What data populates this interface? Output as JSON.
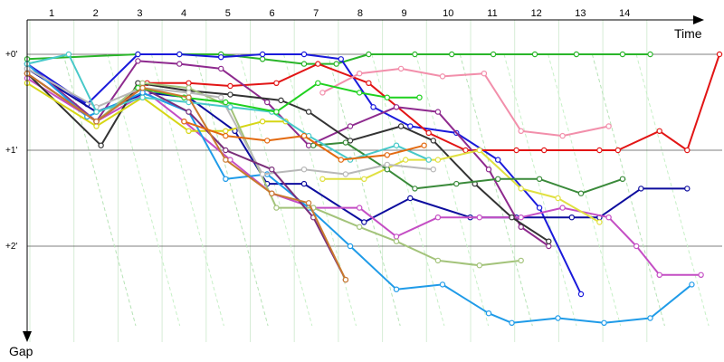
{
  "chart_data": {
    "type": "line",
    "xlabel": "Time",
    "ylabel": "Gap",
    "x_ticks": [
      "1",
      "2",
      "3",
      "4",
      "5",
      "6",
      "7",
      "8",
      "9",
      "10",
      "11",
      "12",
      "13",
      "14"
    ],
    "y_ticks": [
      "+0'",
      "+1'",
      "+2'"
    ],
    "xlim": [
      0,
      15
    ],
    "ylim": [
      0,
      3.2
    ],
    "grid": true,
    "legend": "none",
    "series": [
      {
        "color": "#2ab52a",
        "points": [
          [
            0,
            0.05
          ],
          [
            2.4,
            0.0
          ],
          [
            3.3,
            0.0
          ],
          [
            4.2,
            0.0
          ],
          [
            5.1,
            0.05
          ],
          [
            6,
            0.1
          ],
          [
            6.7,
            0.1
          ],
          [
            7.4,
            0.0
          ],
          [
            8.4,
            0.0
          ],
          [
            9.2,
            0.0
          ],
          [
            10.1,
            0.0
          ],
          [
            11,
            0.0
          ],
          [
            11.9,
            0.0
          ],
          [
            12.9,
            0.0
          ],
          [
            13.5,
            0.0
          ]
        ]
      },
      {
        "color": "#1a1adb",
        "points": [
          [
            0,
            0.1
          ],
          [
            1.3,
            0.52
          ],
          [
            2.4,
            0.0
          ],
          [
            3.3,
            0.0
          ],
          [
            4.2,
            0.03
          ],
          [
            5.1,
            0.0
          ],
          [
            6,
            0.0
          ],
          [
            6.8,
            0.05
          ],
          [
            7.5,
            0.55
          ],
          [
            8.3,
            0.75
          ],
          [
            9.3,
            0.82
          ],
          [
            10.2,
            1.1
          ],
          [
            11.1,
            1.6
          ],
          [
            12,
            2.5
          ]
        ]
      },
      {
        "color": "#e21515",
        "points": [
          [
            0,
            0.2
          ],
          [
            1.5,
            0.7
          ],
          [
            2.6,
            0.3
          ],
          [
            3.5,
            0.3
          ],
          [
            4.4,
            0.33
          ],
          [
            5.4,
            0.3
          ],
          [
            6.3,
            0.1
          ],
          [
            7.4,
            0.3
          ],
          [
            8.7,
            0.82
          ],
          [
            9.5,
            1.0
          ],
          [
            10.6,
            1.0
          ],
          [
            11.2,
            1.0
          ],
          [
            12.4,
            1.0
          ],
          [
            12.8,
            1.0
          ],
          [
            13.7,
            0.8
          ],
          [
            14.3,
            1.0
          ],
          [
            15,
            0.0
          ]
        ]
      },
      {
        "color": "#0d0d9e",
        "points": [
          [
            0,
            0.15
          ],
          [
            1.5,
            0.6
          ],
          [
            2.6,
            0.4
          ],
          [
            3.5,
            0.45
          ],
          [
            4.5,
            0.8
          ],
          [
            5.2,
            1.35
          ],
          [
            6,
            1.35
          ],
          [
            7.3,
            1.75
          ],
          [
            8.3,
            1.5
          ],
          [
            9.6,
            1.7
          ],
          [
            10.6,
            1.7
          ],
          [
            11.8,
            1.7
          ],
          [
            12.4,
            1.7
          ],
          [
            13.3,
            1.4
          ],
          [
            14.3,
            1.4
          ]
        ]
      },
      {
        "color": "#8e2a8e",
        "points": [
          [
            0,
            0.1
          ],
          [
            1.5,
            0.7
          ],
          [
            2.4,
            0.07
          ],
          [
            3.3,
            0.1
          ],
          [
            4.2,
            0.15
          ],
          [
            5.2,
            0.5
          ],
          [
            6.1,
            0.95
          ],
          [
            7,
            0.75
          ],
          [
            8,
            0.55
          ],
          [
            8.9,
            0.6
          ],
          [
            10,
            1.2
          ],
          [
            10.7,
            1.8
          ],
          [
            11.3,
            2.0
          ]
        ]
      },
      {
        "color": "#c44ec4",
        "points": [
          [
            0,
            0.25
          ],
          [
            1.5,
            0.7
          ],
          [
            2.6,
            0.4
          ],
          [
            3.4,
            0.7
          ],
          [
            4.4,
            1.1
          ],
          [
            5.3,
            1.45
          ],
          [
            6.2,
            1.6
          ],
          [
            7.2,
            1.6
          ],
          [
            8,
            1.9
          ],
          [
            8.9,
            1.7
          ],
          [
            9.8,
            1.7
          ],
          [
            10.7,
            1.7
          ],
          [
            11.6,
            1.6
          ],
          [
            12.6,
            1.7
          ],
          [
            13.2,
            2.0
          ],
          [
            13.7,
            2.3
          ],
          [
            14.6,
            2.3
          ]
        ]
      },
      {
        "color": "#333333",
        "points": [
          [
            0,
            0.2
          ],
          [
            1.6,
            0.95
          ],
          [
            2.4,
            0.3
          ],
          [
            3.5,
            0.38
          ],
          [
            4.4,
            0.42
          ],
          [
            5.5,
            0.48
          ],
          [
            6.1,
            0.6
          ],
          [
            7,
            0.9
          ],
          [
            8.1,
            0.75
          ],
          [
            8.8,
            0.9
          ],
          [
            9.7,
            1.35
          ],
          [
            10.5,
            1.7
          ],
          [
            11.3,
            1.95
          ]
        ]
      },
      {
        "color": "#d6d615",
        "points": [
          [
            0,
            0.3
          ],
          [
            1.5,
            0.75
          ],
          [
            2.5,
            0.45
          ],
          [
            3.5,
            0.8
          ],
          [
            4.3,
            0.8
          ],
          [
            5.1,
            0.7
          ],
          [
            5.6,
            0.7
          ]
        ]
      },
      {
        "color": "#e0e040",
        "points": [
          [
            6.4,
            1.3
          ],
          [
            7.3,
            1.3
          ],
          [
            8.2,
            1.1
          ],
          [
            8.9,
            1.1
          ],
          [
            9.8,
            1.0
          ],
          [
            10.7,
            1.4
          ],
          [
            11.5,
            1.5
          ],
          [
            12.4,
            1.75
          ]
        ]
      },
      {
        "color": "#f28fab",
        "points": [
          [
            6.4,
            0.4
          ],
          [
            7.2,
            0.2
          ],
          [
            8.1,
            0.15
          ],
          [
            9,
            0.23
          ],
          [
            9.9,
            0.2
          ],
          [
            10.7,
            0.8
          ],
          [
            11.6,
            0.85
          ],
          [
            12.6,
            0.75
          ]
        ]
      },
      {
        "color": "#1f9be8",
        "points": [
          [
            0,
            0.1
          ],
          [
            1.3,
            0.65
          ],
          [
            2.5,
            0.4
          ],
          [
            3.5,
            0.6
          ],
          [
            4.3,
            1.3
          ],
          [
            5.2,
            1.25
          ],
          [
            6.1,
            1.6
          ],
          [
            7,
            2.0
          ],
          [
            8,
            2.45
          ],
          [
            9,
            2.4
          ],
          [
            10,
            2.7
          ],
          [
            10.5,
            2.8
          ],
          [
            11.5,
            2.75
          ],
          [
            12.5,
            2.8
          ],
          [
            13.5,
            2.75
          ],
          [
            14.4,
            2.4
          ]
        ]
      },
      {
        "color": "#3a8a3a",
        "points": [
          [
            6.2,
            0.95
          ],
          [
            6.9,
            0.92
          ],
          [
            7.8,
            1.2
          ],
          [
            8.4,
            1.4
          ],
          [
            9.3,
            1.35
          ],
          [
            10.2,
            1.3
          ],
          [
            11.1,
            1.3
          ],
          [
            12,
            1.45
          ],
          [
            12.9,
            1.3
          ]
        ]
      },
      {
        "color": "#a3c37a",
        "points": [
          [
            0,
            0.2
          ],
          [
            1.5,
            0.7
          ],
          [
            2.5,
            0.3
          ],
          [
            3.5,
            0.35
          ],
          [
            4.4,
            0.55
          ],
          [
            5.4,
            1.6
          ],
          [
            6.2,
            1.6
          ],
          [
            7.2,
            1.8
          ],
          [
            8,
            1.95
          ],
          [
            8.9,
            2.15
          ],
          [
            9.8,
            2.2
          ],
          [
            10.7,
            2.15
          ]
        ]
      },
      {
        "color": "#b8b8b8",
        "points": [
          [
            0,
            0.15
          ],
          [
            1.5,
            0.55
          ],
          [
            2.5,
            0.35
          ],
          [
            3.5,
            0.4
          ],
          [
            4.2,
            0.45
          ],
          [
            5.1,
            1.25
          ],
          [
            6,
            1.2
          ],
          [
            6.9,
            1.25
          ],
          [
            7.8,
            1.15
          ],
          [
            8.8,
            1.2
          ]
        ]
      },
      {
        "color": "#47c9c9",
        "points": [
          [
            0,
            0.1
          ],
          [
            0.9,
            0.0
          ],
          [
            1.5,
            0.6
          ],
          [
            2.5,
            0.45
          ],
          [
            3.5,
            0.5
          ],
          [
            4.4,
            0.55
          ],
          [
            5.3,
            0.6
          ],
          [
            6.1,
            0.85
          ],
          [
            7,
            1.1
          ],
          [
            8,
            0.95
          ],
          [
            8.7,
            1.1
          ]
        ]
      },
      {
        "color": "#7a2e7a",
        "points": [
          [
            0,
            0.2
          ],
          [
            1.5,
            0.7
          ],
          [
            2.5,
            0.35
          ],
          [
            3.5,
            0.6
          ],
          [
            4.3,
            1.0
          ],
          [
            5.3,
            1.2
          ],
          [
            6.2,
            1.7
          ],
          [
            6.9,
            2.35
          ]
        ]
      },
      {
        "color": "#1fd11f",
        "points": [
          [
            2.4,
            0.35
          ],
          [
            3.4,
            0.45
          ],
          [
            4.3,
            0.5
          ],
          [
            5.4,
            0.6
          ],
          [
            6.3,
            0.3
          ],
          [
            7.2,
            0.4
          ],
          [
            7.8,
            0.45
          ],
          [
            8.5,
            0.45
          ]
        ]
      },
      {
        "color": "#c97a2e",
        "points": [
          [
            0,
            0.2
          ],
          [
            1.5,
            0.7
          ],
          [
            2.5,
            0.35
          ],
          [
            3.5,
            0.45
          ],
          [
            4.3,
            1.1
          ],
          [
            5.3,
            1.45
          ],
          [
            6.1,
            1.55
          ],
          [
            6.9,
            2.35
          ]
        ]
      },
      {
        "color": "#e36a10",
        "points": [
          [
            3.4,
            0.7
          ],
          [
            4.3,
            0.85
          ],
          [
            5.2,
            0.9
          ],
          [
            6,
            0.85
          ],
          [
            6.8,
            1.1
          ],
          [
            7.8,
            1.05
          ],
          [
            8.6,
            0.95
          ]
        ]
      }
    ]
  }
}
